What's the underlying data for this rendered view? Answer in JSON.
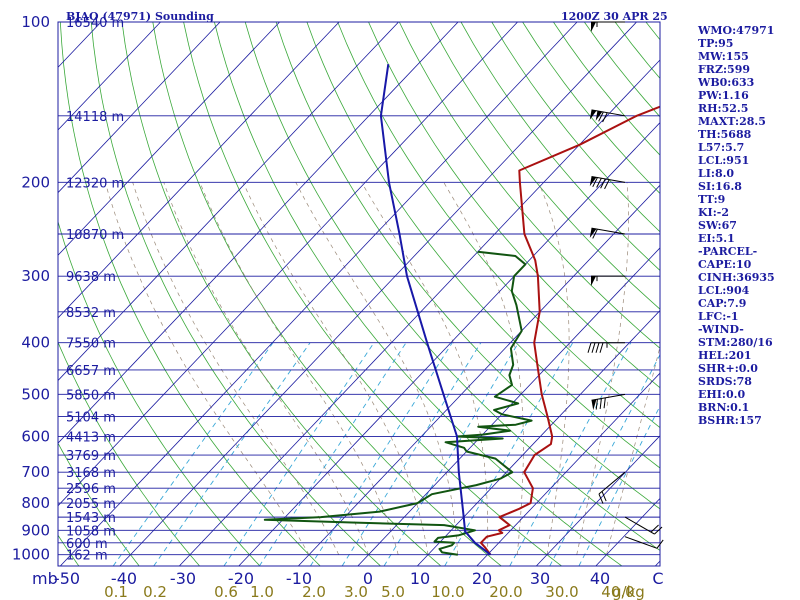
{
  "header": {
    "title": "BJAO (47971) Sounding",
    "time": "1200Z 30 APR 25"
  },
  "units": {
    "pressure": "mb",
    "mixing_ratio": "g/kg"
  },
  "indices": [
    "WMO:47971",
    "TP:95",
    "MW:155",
    "FRZ:599",
    "WB0:633",
    "PW:1.16",
    "RH:52.5",
    "MAXT:28.5",
    "TH:5688",
    "L57:5.7",
    "LCL:951",
    "LI:8.0",
    "SI:16.8",
    "TT:9",
    "KI:-2",
    "SW:67",
    "EI:5.1",
    "-PARCEL-",
    "CAPE:10",
    "CINH:36935",
    "LCL:904",
    "CAP:7.9",
    "LFC:-1",
    "-WIND-",
    "STM:280/16",
    "HEL:201",
    "SHR+:0.0",
    "SRDS:78",
    "EHI:0.0",
    "BRN:0.1",
    "BSHR:157"
  ],
  "chart_data": {
    "type": "line",
    "chart_kind": "skew-T log-P sounding",
    "pressure_levels": [
      100,
      200,
      300,
      400,
      500,
      600,
      700,
      800,
      900,
      1000
    ],
    "pressure_label": "mb",
    "temperature_ticks": [
      "-50",
      "-40",
      "-30",
      "-20",
      "-10",
      "0",
      "10",
      "20",
      "30",
      "40",
      "C"
    ],
    "mixing_ratio_ticks": [
      "0.1",
      "0.2",
      "0.6",
      "1.0",
      "2.0",
      "3.0",
      "5.0",
      "10.0",
      "20.0",
      "30.0",
      "40.0"
    ],
    "mixing_ratio_label": "g/kg",
    "heights": [
      {
        "p": 100,
        "label": "16540 m"
      },
      {
        "p": 150,
        "label": "14118 m"
      },
      {
        "p": 200,
        "label": "12320 m"
      },
      {
        "p": 250,
        "label": "10870 m"
      },
      {
        "p": 300,
        "label": "9638 m"
      },
      {
        "p": 350,
        "label": "8532 m"
      },
      {
        "p": 400,
        "label": "7550 m"
      },
      {
        "p": 450,
        "label": "6657 m"
      },
      {
        "p": 500,
        "label": "5850 m"
      },
      {
        "p": 550,
        "label": "5104 m"
      },
      {
        "p": 600,
        "label": "4413 m"
      },
      {
        "p": 650,
        "label": "3769 m"
      },
      {
        "p": 700,
        "label": "3168 m"
      },
      {
        "p": 750,
        "label": "2596 m"
      },
      {
        "p": 800,
        "label": "2055 m"
      },
      {
        "p": 850,
        "label": "1543 m"
      },
      {
        "p": 900,
        "label": "1058 m"
      },
      {
        "p": 950,
        "label": "600 m"
      },
      {
        "p": 1000,
        "label": "162 m"
      }
    ],
    "series": [
      {
        "key": "temperature",
        "color": "#aa1111",
        "points": [
          [
            1000,
            20.5
          ],
          [
            970,
            18.5
          ],
          [
            950,
            17
          ],
          [
            925,
            17
          ],
          [
            910,
            19
          ],
          [
            900,
            18
          ],
          [
            880,
            19
          ],
          [
            850,
            16
          ],
          [
            820,
            18
          ],
          [
            800,
            19
          ],
          [
            750,
            17
          ],
          [
            700,
            13
          ],
          [
            650,
            12
          ],
          [
            620,
            13
          ],
          [
            600,
            12
          ],
          [
            550,
            8
          ],
          [
            500,
            3.5
          ],
          [
            450,
            -1
          ],
          [
            400,
            -6
          ],
          [
            350,
            -10
          ],
          [
            300,
            -16
          ],
          [
            280,
            -19
          ],
          [
            250,
            -25
          ],
          [
            200,
            -34
          ],
          [
            190,
            -36
          ],
          [
            170,
            -30
          ],
          [
            150,
            -25
          ],
          [
            130,
            -16
          ],
          [
            110,
            -6
          ],
          [
            100,
            -1
          ],
          [
            95,
            0
          ]
        ]
      },
      {
        "key": "dewpoint",
        "color": "#115511",
        "points": [
          [
            1000,
            15
          ],
          [
            990,
            12
          ],
          [
            975,
            11
          ],
          [
            960,
            12.5
          ],
          [
            950,
            12.5
          ],
          [
            945,
            9
          ],
          [
            930,
            9
          ],
          [
            920,
            12
          ],
          [
            915,
            12.5
          ],
          [
            900,
            14
          ],
          [
            880,
            8
          ],
          [
            870,
            -8
          ],
          [
            860,
            -23
          ],
          [
            850,
            -14
          ],
          [
            830,
            -5
          ],
          [
            800,
            0
          ],
          [
            770,
            1
          ],
          [
            740,
            7
          ],
          [
            720,
            10
          ],
          [
            700,
            11
          ],
          [
            660,
            6
          ],
          [
            640,
            0
          ],
          [
            630,
            -1
          ],
          [
            615,
            -5
          ],
          [
            605,
            4
          ],
          [
            600,
            -4
          ],
          [
            595,
            0
          ],
          [
            585,
            4
          ],
          [
            575,
            -2
          ],
          [
            570,
            4
          ],
          [
            560,
            6
          ],
          [
            545,
            0
          ],
          [
            535,
            -2
          ],
          [
            520,
            1
          ],
          [
            505,
            -4
          ],
          [
            480,
            -3
          ],
          [
            460,
            -5
          ],
          [
            440,
            -6
          ],
          [
            410,
            -9
          ],
          [
            380,
            -10
          ],
          [
            340,
            -15
          ],
          [
            320,
            -18
          ],
          [
            300,
            -20
          ],
          [
            285,
            -20
          ],
          [
            275,
            -23
          ],
          [
            270,
            -30
          ]
        ]
      },
      {
        "key": "parcel",
        "color": "#1818a8",
        "points": [
          [
            1000,
            20.5
          ],
          [
            950,
            16
          ],
          [
            904,
            12.5
          ],
          [
            850,
            10
          ],
          [
            800,
            7.5
          ],
          [
            700,
            2
          ],
          [
            600,
            -4
          ],
          [
            500,
            -13
          ],
          [
            400,
            -24
          ],
          [
            300,
            -38
          ],
          [
            250,
            -46
          ],
          [
            200,
            -56
          ],
          [
            150,
            -68
          ],
          [
            120,
            -75
          ]
        ]
      }
    ],
    "wind_barbs": [
      {
        "p": 100,
        "dir": 270,
        "kt": 55
      },
      {
        "p": 150,
        "dir": 280,
        "kt": 120
      },
      {
        "p": 200,
        "dir": 280,
        "kt": 90
      },
      {
        "p": 250,
        "dir": 280,
        "kt": 60
      },
      {
        "p": 300,
        "dir": 270,
        "kt": 55
      },
      {
        "p": 400,
        "dir": 270,
        "kt": 45
      },
      {
        "p": 500,
        "dir": 260,
        "kt": 80
      },
      {
        "p": 700,
        "dir": 230,
        "kt": 20
      },
      {
        "p": 850,
        "dir": 120,
        "kt": 20
      },
      {
        "p": 925,
        "dir": 110,
        "kt": 10
      }
    ]
  }
}
